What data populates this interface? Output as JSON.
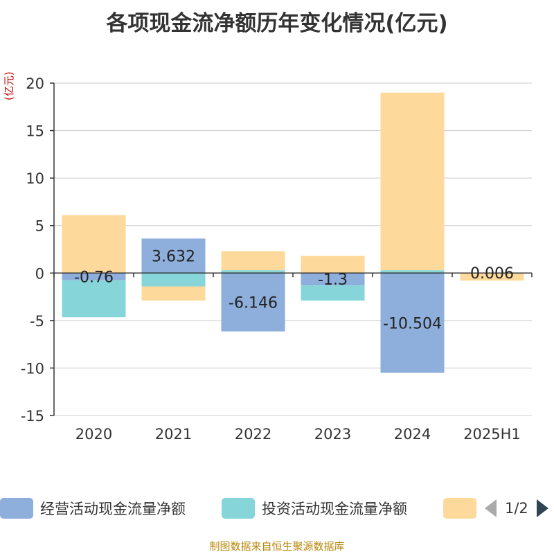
{
  "title": "各项现金流净额历年变化情况(亿元)",
  "unit_label": "(亿元)",
  "source": "制图数据来自恒生聚源数据库",
  "legend": {
    "items": [
      {
        "label": "经营活动现金流量净额",
        "color": "#8eaedb"
      },
      {
        "label": "投资活动现金流量净额",
        "color": "#86d5d8"
      },
      {
        "label": "",
        "color": "#fdd99b"
      }
    ],
    "pager": "1/2"
  },
  "chart_data": {
    "type": "bar",
    "stacked": true,
    "categories": [
      "2020",
      "2021",
      "2022",
      "2023",
      "2024",
      "2025H1"
    ],
    "ylim": [
      -15,
      20
    ],
    "yticks": [
      20,
      15,
      10,
      5,
      0,
      -5,
      -10,
      -15
    ],
    "grid": true,
    "legend_position": "bottom",
    "series": [
      {
        "name": "经营活动现金流量净额",
        "color": "#8eaedb",
        "values": [
          -0.76,
          3.632,
          -6.146,
          -1.3,
          -10.504,
          0.006
        ],
        "show_labels": true
      },
      {
        "name": "投资活动现金流量净额",
        "color": "#86d5d8",
        "values": [
          -3.9,
          -1.4,
          0.3,
          -1.6,
          0.3,
          0.0
        ],
        "show_labels": false
      },
      {
        "color": "#fdd99b",
        "values": [
          6.1,
          -1.5,
          2.0,
          1.8,
          18.7,
          -0.8
        ],
        "show_labels": false
      }
    ],
    "data_labels": [
      "-0.76",
      "3.632",
      "-6.146",
      "-1.3",
      "-10.504",
      "0.006"
    ]
  }
}
